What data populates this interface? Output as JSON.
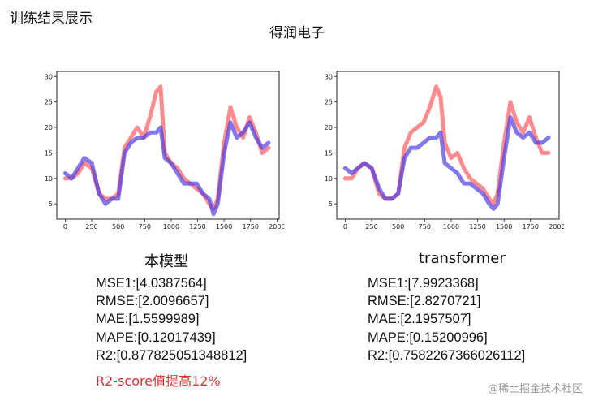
{
  "header": {
    "title": "训练结果展示",
    "company": "得润电子"
  },
  "colors": {
    "actual": "#ff5a5f",
    "predicted": "#4d3fe6",
    "note": "#e0302d"
  },
  "chart_data": [
    {
      "type": "line",
      "xlim": [
        -80,
        2020
      ],
      "ylim": [
        2,
        31
      ],
      "xticks": [
        0,
        250,
        500,
        750,
        1000,
        1250,
        1500,
        1750,
        2000
      ],
      "yticks": [
        5,
        10,
        15,
        20,
        25,
        30
      ],
      "series": [
        {
          "x": [
            0,
            60,
            120,
            180,
            250,
            320,
            380,
            440,
            500,
            560,
            620,
            680,
            740,
            800,
            860,
            900,
            940,
            1000,
            1060,
            1120,
            1180,
            1240,
            1300,
            1360,
            1400,
            1440,
            1500,
            1560,
            1620,
            1680,
            1740,
            1800,
            1860,
            1920
          ],
          "values": [
            10,
            10,
            11,
            13,
            12,
            7,
            6,
            6,
            7,
            16,
            18,
            20,
            18,
            22,
            27,
            28,
            15,
            13,
            12,
            10,
            9,
            8,
            7,
            5,
            4,
            6,
            17,
            24,
            20,
            18,
            22,
            19,
            15,
            16
          ]
        },
        {
          "x": [
            0,
            60,
            120,
            180,
            250,
            320,
            380,
            440,
            500,
            560,
            620,
            680,
            740,
            800,
            860,
            900,
            940,
            1000,
            1060,
            1120,
            1180,
            1240,
            1300,
            1360,
            1400,
            1440,
            1500,
            1560,
            1620,
            1680,
            1740,
            1800,
            1860,
            1920
          ],
          "values": [
            11,
            10,
            12,
            14,
            13,
            7,
            5,
            6,
            6,
            15,
            17,
            18,
            18,
            19,
            19,
            20,
            14,
            13,
            11,
            9,
            9,
            9,
            7,
            6,
            3,
            5,
            15,
            21,
            18,
            19,
            21,
            18,
            16,
            17
          ]
        }
      ]
    },
    {
      "type": "line",
      "xlim": [
        -80,
        2020
      ],
      "ylim": [
        2,
        31
      ],
      "xticks": [
        0,
        250,
        500,
        750,
        1000,
        1250,
        1500,
        1750,
        2000
      ],
      "yticks": [
        5,
        10,
        15,
        20,
        25,
        30
      ],
      "series": [
        {
          "x": [
            0,
            60,
            120,
            180,
            250,
            320,
            380,
            440,
            500,
            560,
            620,
            680,
            740,
            800,
            860,
            900,
            940,
            1000,
            1060,
            1120,
            1180,
            1240,
            1300,
            1360,
            1400,
            1440,
            1500,
            1560,
            1620,
            1680,
            1740,
            1800,
            1860,
            1920
          ],
          "values": [
            10,
            10,
            12,
            13,
            12,
            7,
            6,
            6,
            7,
            16,
            19,
            20,
            21,
            24,
            28,
            26,
            17,
            14,
            15,
            12,
            10,
            9,
            8,
            6,
            5,
            7,
            17,
            25,
            21,
            19,
            22,
            18,
            15,
            15
          ]
        },
        {
          "x": [
            0,
            60,
            120,
            180,
            250,
            320,
            380,
            440,
            500,
            560,
            620,
            680,
            740,
            800,
            860,
            900,
            940,
            1000,
            1060,
            1120,
            1180,
            1240,
            1300,
            1360,
            1400,
            1440,
            1500,
            1560,
            1620,
            1680,
            1740,
            1800,
            1860,
            1920
          ],
          "values": [
            12,
            11,
            12,
            13,
            12,
            8,
            6,
            6,
            7,
            14,
            16,
            16,
            17,
            18,
            18,
            19,
            13,
            12,
            11,
            9,
            9,
            8,
            7,
            5,
            4,
            5,
            14,
            22,
            19,
            18,
            19,
            17,
            17,
            18
          ]
        }
      ]
    }
  ],
  "models": [
    {
      "name": "本模型",
      "metrics": [
        "MSE1:[4.0387564]",
        "RMSE:[2.0096657]",
        "MAE:[1.5599989]",
        "MAPE:[0.12017439]",
        "R2:[0.877825051348812]"
      ]
    },
    {
      "name": "transformer",
      "metrics": [
        "MSE1:[7.9923368]",
        "RMSE:[2.8270721]",
        "MAE:[2.1957507]",
        "MAPE:[0.15200996]",
        "R2:[0.7582267366026112]"
      ]
    }
  ],
  "note": "R2-score值提高12%",
  "watermark": "@稀土掘金技术社区"
}
